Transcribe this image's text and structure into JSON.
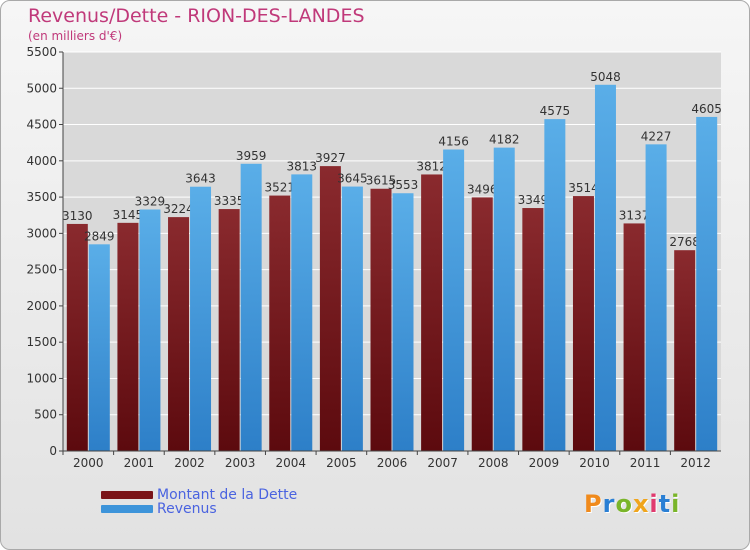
{
  "chart_data": {
    "type": "bar",
    "title": "Revenus/Dette - RION-DES-LANDES",
    "subtitle": "(en milliers d'€)",
    "categories": [
      "2000",
      "2001",
      "2002",
      "2003",
      "2004",
      "2005",
      "2006",
      "2007",
      "2008",
      "2009",
      "2010",
      "2011",
      "2012"
    ],
    "series": [
      {
        "name": "Montant de la Dette",
        "color": "#7a1418",
        "values": [
          3130,
          3145,
          3224,
          3335,
          3521,
          3927,
          3615,
          3812,
          3496,
          3349,
          3514,
          3137,
          2768
        ]
      },
      {
        "name": "Revenus",
        "color": "#3d94da",
        "values": [
          2849,
          3329,
          3643,
          3959,
          3813,
          3645,
          3553,
          4156,
          4182,
          4575,
          5048,
          4227,
          4605
        ]
      }
    ],
    "ylim": [
      0,
      5500
    ],
    "yticks": [
      0,
      500,
      1000,
      1500,
      2000,
      2500,
      3000,
      3500,
      4000,
      4500,
      5000,
      5500
    ],
    "grid": true,
    "legend_position": "bottom-left"
  },
  "logo": {
    "text": "Proxiti",
    "letter_colors": [
      "#f08a1c",
      "#2a7fd4",
      "#7ab52a",
      "#f0a51c",
      "#e03a6e",
      "#2a7fd4",
      "#7ab52a"
    ]
  }
}
